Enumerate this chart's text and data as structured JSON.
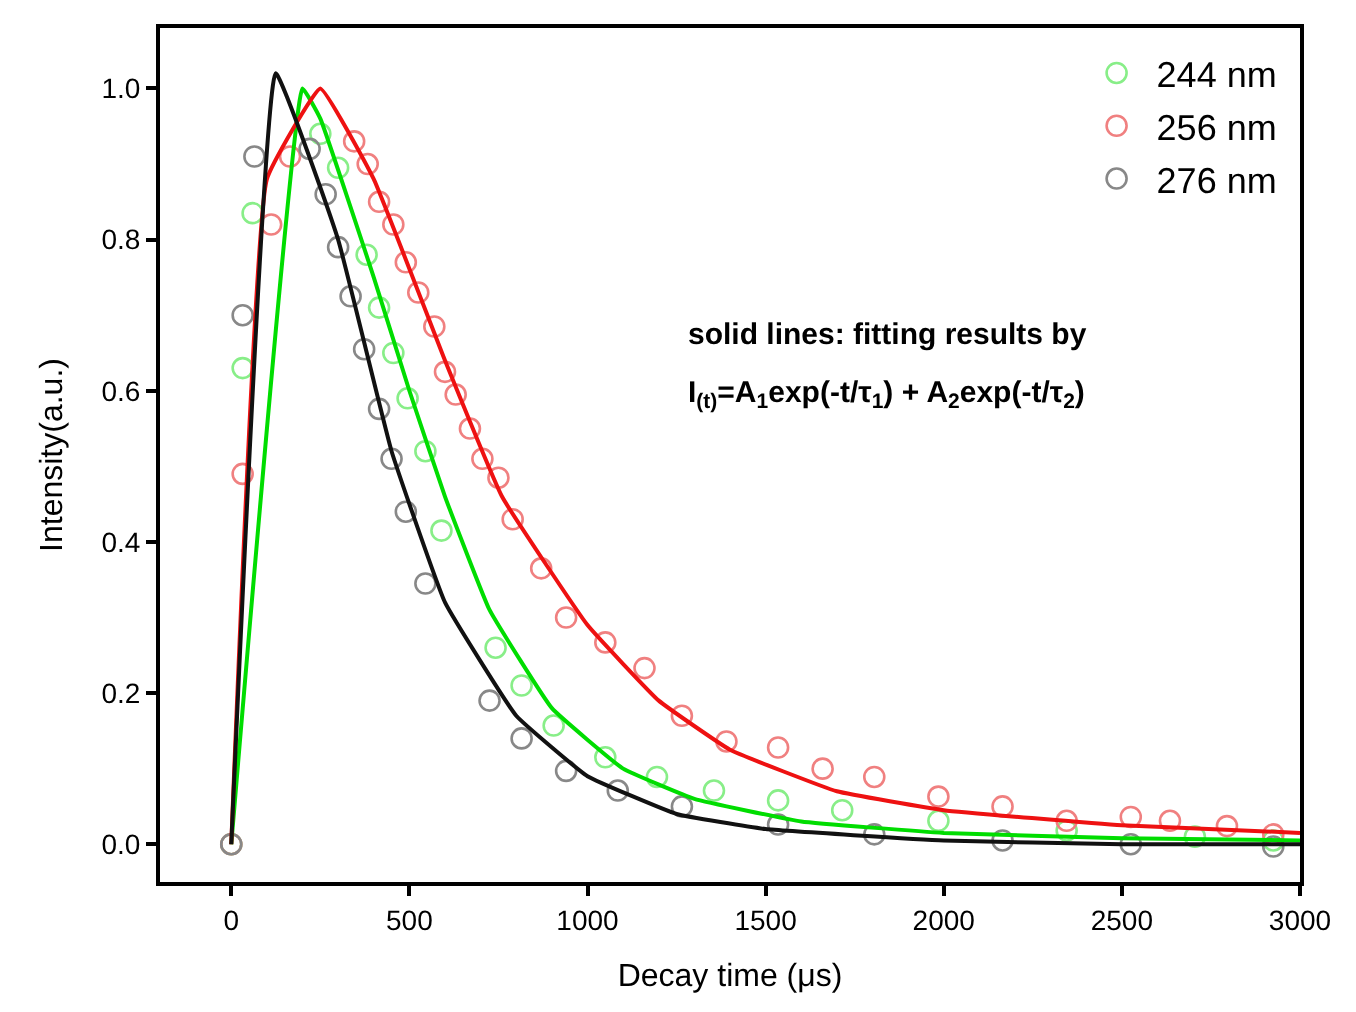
{
  "chart_data": {
    "type": "scatter",
    "xlabel": "Decay time (μs)",
    "ylabel": "Intensity(a.u.)",
    "xlim": [
      -200,
      3000
    ],
    "ylim": [
      -0.05,
      1.08
    ],
    "xticks": [
      0,
      500,
      1000,
      1500,
      2000,
      2500,
      3000
    ],
    "yticks": [
      {
        "value": 0,
        "label": "0.0"
      },
      {
        "value": 0.2,
        "label": "0.2"
      },
      {
        "value": 0.4,
        "label": "0.4"
      },
      {
        "value": 0.6,
        "label": "0.6"
      },
      {
        "value": 0.8,
        "label": "0.8"
      },
      {
        "value": 1.0,
        "label": "1.0"
      }
    ],
    "legend": "top right",
    "annotations": [
      "solid lines: fitting results by",
      "I$_{(t)}$=A$_{1}$exp(-t/τ$_{1}$) + A$_{2}$exp(-t/τ$_{2}$)"
    ],
    "series": [
      {
        "name": "244 nm",
        "marker": "circle",
        "color": "#88ee88",
        "x": [
          0,
          32,
          60,
          250,
          300,
          380,
          415,
          455,
          495,
          545,
          590,
          742,
          815,
          905,
          1050,
          1195,
          1355,
          1535,
          1715,
          1985,
          2345,
          2705,
          2925
        ],
        "values": [
          0.0,
          0.63,
          0.835,
          0.94,
          0.895,
          0.78,
          0.71,
          0.65,
          0.59,
          0.52,
          0.415,
          0.26,
          0.21,
          0.157,
          0.115,
          0.089,
          0.071,
          0.058,
          0.045,
          0.031,
          0.018,
          0.01,
          0.005
        ]
      },
      {
        "name": "256 nm",
        "marker": "circle",
        "color": "#f08080",
        "x": [
          0,
          32,
          112,
          165,
          345,
          383,
          415,
          455,
          490,
          525,
          570,
          600,
          630,
          670,
          705,
          750,
          790,
          870,
          940,
          1050,
          1160,
          1265,
          1390,
          1535,
          1660,
          1805,
          1985,
          2165,
          2345,
          2525,
          2635,
          2795,
          2925
        ],
        "values": [
          0.0,
          0.49,
          0.82,
          0.91,
          0.93,
          0.9,
          0.85,
          0.82,
          0.77,
          0.73,
          0.685,
          0.625,
          0.595,
          0.55,
          0.51,
          0.485,
          0.43,
          0.365,
          0.3,
          0.267,
          0.233,
          0.17,
          0.136,
          0.128,
          0.1,
          0.089,
          0.063,
          0.05,
          0.031,
          0.036,
          0.031,
          0.024,
          0.013
        ]
      },
      {
        "name": "276 nm",
        "marker": "circle",
        "color": "#888888",
        "x": [
          0,
          32,
          65,
          220,
          265,
          300,
          335,
          373,
          415,
          450,
          490,
          545,
          725,
          815,
          940,
          1085,
          1265,
          1535,
          1805,
          2165,
          2525,
          2925
        ],
        "values": [
          0.0,
          0.7,
          0.91,
          0.92,
          0.86,
          0.79,
          0.725,
          0.655,
          0.576,
          0.51,
          0.44,
          0.345,
          0.19,
          0.14,
          0.097,
          0.071,
          0.05,
          0.026,
          0.013,
          0.005,
          0.0,
          -0.003
        ]
      },
      {
        "type": "line",
        "marker": "none",
        "color": "#00dd00",
        "x": [
          0,
          200,
          250,
          400,
          500,
          600,
          725,
          900,
          1100,
          1300,
          1600,
          2000,
          2500,
          3000
        ],
        "values": [
          0.0,
          1.0,
          0.96,
          0.75,
          0.6,
          0.46,
          0.31,
          0.18,
          0.1,
          0.06,
          0.03,
          0.015,
          0.008,
          0.005
        ]
      },
      {
        "type": "line",
        "marker": "none",
        "color": "#ee1111",
        "x": [
          0,
          100,
          250,
          400,
          600,
          760,
          1000,
          1200,
          1400,
          1700,
          2000,
          2500,
          3000
        ],
        "values": [
          0.0,
          0.88,
          1.0,
          0.88,
          0.64,
          0.46,
          0.29,
          0.19,
          0.125,
          0.07,
          0.045,
          0.025,
          0.015
        ]
      },
      {
        "type": "line",
        "marker": "none",
        "color": "#111111",
        "x": [
          0,
          125,
          300,
          450,
          600,
          800,
          1000,
          1250,
          1500,
          2000,
          2500,
          3000
        ],
        "values": [
          0.0,
          1.02,
          0.8,
          0.52,
          0.32,
          0.17,
          0.09,
          0.04,
          0.02,
          0.005,
          0.0,
          0.0
        ]
      }
    ]
  }
}
